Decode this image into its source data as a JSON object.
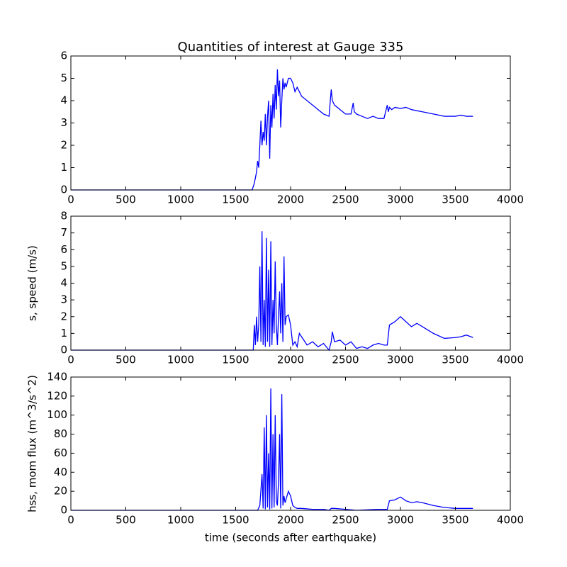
{
  "chart_data": [
    {
      "type": "line",
      "title": "Quantities of interest at Gauge 335",
      "x": [
        0,
        1600,
        1650,
        1670,
        1690,
        1700,
        1710,
        1720,
        1730,
        1740,
        1750,
        1760,
        1770,
        1780,
        1790,
        1800,
        1810,
        1820,
        1830,
        1840,
        1850,
        1860,
        1870,
        1880,
        1890,
        1900,
        1910,
        1920,
        1930,
        1940,
        1950,
        1960,
        1980,
        2000,
        2020,
        2040,
        2060,
        2100,
        2150,
        2200,
        2250,
        2300,
        2350,
        2370,
        2380,
        2400,
        2450,
        2500,
        2550,
        2570,
        2580,
        2600,
        2650,
        2700,
        2750,
        2800,
        2850,
        2880,
        2890,
        2900,
        2920,
        2950,
        3000,
        3050,
        3100,
        3150,
        3200,
        3300,
        3400,
        3500,
        3550,
        3600,
        3660
      ],
      "series": [
        {
          "color": "#0000ff",
          "values": [
            0,
            0,
            0,
            0.3,
            0.8,
            1.3,
            1.0,
            2.0,
            3.1,
            2.0,
            2.6,
            2.2,
            3.4,
            2.0,
            3.3,
            4.0,
            1.4,
            3.8,
            2.8,
            4.3,
            3.2,
            4.7,
            3.6,
            5.4,
            4.2,
            4.9,
            2.8,
            4.0,
            5.0,
            4.5,
            4.8,
            4.6,
            5.0,
            5.0,
            4.8,
            4.4,
            4.6,
            4.2,
            4.0,
            3.8,
            3.6,
            3.4,
            3.3,
            4.5,
            4.0,
            3.8,
            3.6,
            3.4,
            3.4,
            3.9,
            3.5,
            3.4,
            3.3,
            3.2,
            3.3,
            3.2,
            3.2,
            3.8,
            3.5,
            3.7,
            3.6,
            3.7,
            3.65,
            3.7,
            3.6,
            3.55,
            3.5,
            3.4,
            3.3,
            3.3,
            3.35,
            3.3,
            3.3
          ]
        }
      ],
      "xlim": [
        0,
        4000
      ],
      "xticks": [
        0,
        500,
        1000,
        1500,
        2000,
        2500,
        3000,
        3500,
        4000
      ],
      "ylim": [
        0,
        6
      ],
      "yticks": [
        0,
        1,
        2,
        3,
        4,
        5,
        6
      ]
    },
    {
      "type": "line",
      "ylabel": "s, speed (m/s)",
      "x": [
        0,
        1650,
        1660,
        1670,
        1680,
        1690,
        1700,
        1710,
        1720,
        1730,
        1740,
        1750,
        1760,
        1770,
        1780,
        1790,
        1800,
        1810,
        1820,
        1830,
        1840,
        1850,
        1860,
        1870,
        1880,
        1890,
        1900,
        1910,
        1920,
        1930,
        1940,
        1950,
        1960,
        1980,
        2000,
        2020,
        2040,
        2060,
        2080,
        2100,
        2150,
        2200,
        2250,
        2300,
        2350,
        2370,
        2380,
        2400,
        2450,
        2500,
        2550,
        2600,
        2650,
        2700,
        2750,
        2800,
        2850,
        2880,
        2900,
        2950,
        3000,
        3050,
        3100,
        3150,
        3200,
        3300,
        3400,
        3500,
        3550,
        3600,
        3660
      ],
      "series": [
        {
          "color": "#0000ff",
          "values": [
            0,
            0,
            0,
            1.5,
            0.3,
            2.0,
            0.5,
            1.5,
            5.0,
            0.5,
            7.1,
            0.3,
            3.0,
            0.2,
            6.7,
            0.5,
            4.8,
            0.2,
            6.5,
            0.3,
            3.0,
            1.0,
            5.3,
            1.5,
            0.3,
            2.0,
            3.5,
            1.0,
            4.0,
            0.5,
            5.6,
            1.5,
            2.0,
            2.1,
            1.5,
            0.3,
            0.5,
            0.2,
            1.0,
            0.8,
            0.3,
            0.5,
            0.2,
            0.4,
            0.0,
            0.5,
            1.1,
            0.5,
            0.6,
            0.3,
            0.5,
            0.1,
            0.2,
            0.1,
            0.3,
            0.4,
            0.3,
            0.3,
            1.5,
            1.7,
            2.0,
            1.7,
            1.4,
            1.6,
            1.4,
            1.0,
            0.7,
            0.75,
            0.8,
            0.9,
            0.75
          ]
        }
      ],
      "xlim": [
        0,
        4000
      ],
      "xticks": [
        0,
        500,
        1000,
        1500,
        2000,
        2500,
        3000,
        3500,
        4000
      ],
      "ylim": [
        0,
        8
      ],
      "yticks": [
        0,
        1,
        2,
        3,
        4,
        5,
        6,
        7,
        8
      ]
    },
    {
      "type": "line",
      "ylabel": "hss, mom flux (m^3/s^2)",
      "xlabel": "time (seconds after earthquake)",
      "x": [
        0,
        1650,
        1700,
        1720,
        1740,
        1750,
        1760,
        1770,
        1780,
        1790,
        1800,
        1810,
        1820,
        1830,
        1840,
        1850,
        1860,
        1870,
        1880,
        1890,
        1900,
        1910,
        1920,
        1930,
        1940,
        1950,
        1960,
        1980,
        2000,
        2020,
        2040,
        2060,
        2100,
        2200,
        2300,
        2350,
        2370,
        2400,
        2500,
        2600,
        2800,
        2880,
        2900,
        2950,
        3000,
        3050,
        3100,
        3150,
        3200,
        3300,
        3400,
        3500,
        3600,
        3660
      ],
      "series": [
        {
          "color": "#0000ff",
          "values": [
            0,
            0,
            0,
            5,
            38,
            2,
            87,
            1,
            100,
            3,
            60,
            1,
            128,
            2,
            80,
            3,
            100,
            10,
            5,
            30,
            80,
            2,
            122,
            5,
            15,
            8,
            12,
            20,
            15,
            5,
            3,
            2,
            2,
            1,
            1,
            0,
            2,
            2,
            1,
            0,
            1,
            1,
            10,
            11,
            14,
            10,
            8,
            9,
            8,
            5,
            3,
            2,
            2,
            2
          ]
        }
      ],
      "xlim": [
        0,
        4000
      ],
      "xticks": [
        0,
        500,
        1000,
        1500,
        2000,
        2500,
        3000,
        3500,
        4000
      ],
      "ylim": [
        0,
        140
      ],
      "yticks": [
        0,
        20,
        40,
        60,
        80,
        100,
        120,
        140
      ]
    }
  ]
}
